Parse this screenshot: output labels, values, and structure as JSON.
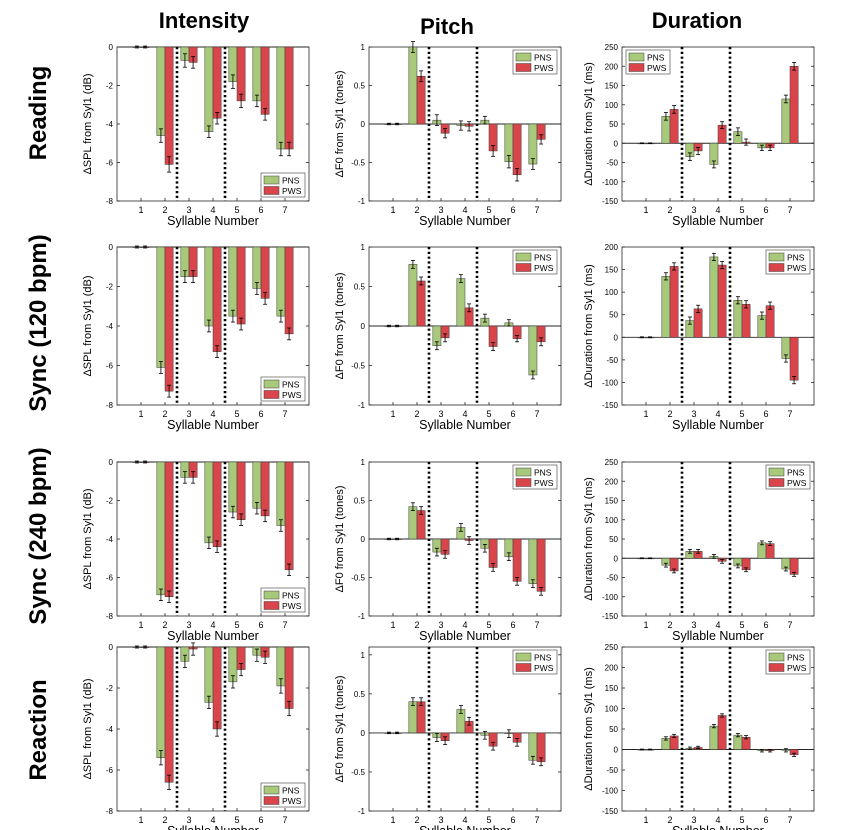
{
  "column_titles": [
    "Intensity",
    "Pitch",
    "Duration"
  ],
  "row_titles": [
    "Reading",
    "Sync (120 bpm)",
    "Sync (240 bpm)",
    "Reaction"
  ],
  "xlabel": "Syllable Number",
  "ylabels": [
    "ΔSPL from Syl1 (dB)",
    "ΔF0 from Syl1 (tones)",
    "ΔDuration from Syl1 (ms)"
  ],
  "legend": [
    "PNS",
    "PWS"
  ],
  "colors": {
    "PNS": "#a9c97a",
    "PWS": "#d9454b",
    "text": "#000000",
    "axis": "#262626"
  },
  "chart_data": [
    {
      "type": "bar",
      "row": "Reading",
      "column": "Intensity",
      "categories": [
        "1",
        "2",
        "3",
        "4",
        "5",
        "6",
        "7"
      ],
      "ylim": [
        -8,
        0
      ],
      "yticks": [
        0,
        -2,
        -4,
        -6,
        -8
      ],
      "separators_after": [
        2,
        4
      ],
      "legend_position": "bottom-right",
      "series": [
        {
          "name": "PNS",
          "values": [
            0,
            -4.6,
            -0.7,
            -4.4,
            -1.8,
            -2.8,
            -5.3
          ],
          "errors": [
            0.05,
            0.35,
            0.35,
            0.3,
            0.35,
            0.3,
            0.35
          ]
        },
        {
          "name": "PWS",
          "values": [
            0,
            -6.1,
            -0.8,
            -3.7,
            -2.8,
            -3.5,
            -5.3
          ],
          "errors": [
            0.05,
            0.4,
            0.3,
            0.3,
            0.35,
            0.3,
            0.35
          ]
        }
      ]
    },
    {
      "type": "bar",
      "row": "Reading",
      "column": "Pitch",
      "categories": [
        "1",
        "2",
        "3",
        "4",
        "5",
        "6",
        "7"
      ],
      "ylim": [
        -1,
        1
      ],
      "yticks": [
        1,
        0.5,
        0,
        -0.5,
        -1
      ],
      "separators_after": [
        2,
        4
      ],
      "legend_position": "top-right",
      "series": [
        {
          "name": "PNS",
          "values": [
            0,
            1.0,
            0.05,
            -0.02,
            0.05,
            -0.49,
            -0.52
          ],
          "errors": [
            0.01,
            0.07,
            0.07,
            0.06,
            0.05,
            0.08,
            0.07
          ]
        },
        {
          "name": "PWS",
          "values": [
            0,
            0.62,
            -0.12,
            -0.03,
            -0.35,
            -0.66,
            -0.2
          ],
          "errors": [
            0.01,
            0.07,
            0.06,
            0.06,
            0.07,
            0.08,
            0.06
          ]
        }
      ]
    },
    {
      "type": "bar",
      "row": "Reading",
      "column": "Duration",
      "categories": [
        "1",
        "2",
        "3",
        "4",
        "5",
        "6",
        "7"
      ],
      "ylim": [
        -150,
        250
      ],
      "yticks": [
        250,
        200,
        150,
        100,
        50,
        0,
        -50,
        -100,
        -150
      ],
      "separators_after": [
        2,
        4
      ],
      "legend_position": "top-left",
      "series": [
        {
          "name": "PNS",
          "values": [
            0,
            70,
            -35,
            -55,
            30,
            -12,
            115
          ],
          "errors": [
            1,
            10,
            10,
            9,
            10,
            7,
            10
          ]
        },
        {
          "name": "PWS",
          "values": [
            0,
            88,
            -20,
            47,
            3,
            -12,
            200
          ],
          "errors": [
            1,
            10,
            9,
            9,
            8,
            7,
            10
          ]
        }
      ]
    },
    {
      "type": "bar",
      "row": "Sync (120 bpm)",
      "column": "Intensity",
      "categories": [
        "1",
        "2",
        "3",
        "4",
        "5",
        "6",
        "7"
      ],
      "ylim": [
        -8,
        0
      ],
      "yticks": [
        0,
        -2,
        -4,
        -6,
        -8
      ],
      "separators_after": [
        2,
        4
      ],
      "legend_position": "bottom-right",
      "series": [
        {
          "name": "PNS",
          "values": [
            0,
            -6.1,
            -1.5,
            -4.0,
            -3.5,
            -2.1,
            -3.5
          ],
          "errors": [
            0.05,
            0.3,
            0.3,
            0.3,
            0.3,
            0.3,
            0.3
          ]
        },
        {
          "name": "PWS",
          "values": [
            0,
            -7.3,
            -1.5,
            -5.3,
            -3.9,
            -2.6,
            -4.4
          ],
          "errors": [
            0.05,
            0.3,
            0.3,
            0.3,
            0.3,
            0.3,
            0.3
          ]
        }
      ]
    },
    {
      "type": "bar",
      "row": "Sync (120 bpm)",
      "column": "Pitch",
      "categories": [
        "1",
        "2",
        "3",
        "4",
        "5",
        "6",
        "7"
      ],
      "ylim": [
        -1,
        1
      ],
      "yticks": [
        1,
        0.5,
        0,
        -0.5,
        -1
      ],
      "separators_after": [
        2,
        4
      ],
      "legend_position": "top-right",
      "series": [
        {
          "name": "PNS",
          "values": [
            0,
            0.78,
            -0.25,
            0.6,
            0.1,
            0.04,
            -0.62
          ],
          "errors": [
            0.01,
            0.05,
            0.05,
            0.05,
            0.05,
            0.04,
            0.05
          ]
        },
        {
          "name": "PWS",
          "values": [
            0,
            0.57,
            -0.15,
            0.23,
            -0.26,
            -0.16,
            -0.2
          ],
          "errors": [
            0.01,
            0.05,
            0.05,
            0.05,
            0.05,
            0.04,
            0.05
          ]
        }
      ]
    },
    {
      "type": "bar",
      "row": "Sync (120 bpm)",
      "column": "Duration",
      "categories": [
        "1",
        "2",
        "3",
        "4",
        "5",
        "6",
        "7"
      ],
      "ylim": [
        -150,
        200
      ],
      "yticks": [
        200,
        150,
        100,
        50,
        0,
        -50,
        -100,
        -150
      ],
      "separators_after": [
        2,
        4
      ],
      "legend_position": "top-right",
      "series": [
        {
          "name": "PNS",
          "values": [
            0,
            135,
            37,
            178,
            82,
            48,
            -47
          ],
          "errors": [
            1,
            8,
            8,
            8,
            8,
            8,
            8
          ]
        },
        {
          "name": "PWS",
          "values": [
            0,
            157,
            63,
            160,
            73,
            70,
            -95
          ],
          "errors": [
            1,
            8,
            8,
            8,
            8,
            8,
            8
          ]
        }
      ]
    },
    {
      "type": "bar",
      "row": "Sync (240 bpm)",
      "column": "Intensity",
      "categories": [
        "1",
        "2",
        "3",
        "4",
        "5",
        "6",
        "7"
      ],
      "ylim": [
        -8,
        0
      ],
      "yticks": [
        0,
        -2,
        -4,
        -6,
        -8
      ],
      "separators_after": [
        2,
        4
      ],
      "legend_position": "bottom-right",
      "series": [
        {
          "name": "PNS",
          "values": [
            0,
            -6.9,
            -0.8,
            -4.2,
            -2.6,
            -2.4,
            -3.3
          ],
          "errors": [
            0.05,
            0.3,
            0.3,
            0.3,
            0.3,
            0.3,
            0.3
          ]
        },
        {
          "name": "PWS",
          "values": [
            0,
            -7.0,
            -0.8,
            -4.4,
            -3.0,
            -2.8,
            -5.6
          ],
          "errors": [
            0.05,
            0.3,
            0.3,
            0.3,
            0.3,
            0.3,
            0.3
          ]
        }
      ]
    },
    {
      "type": "bar",
      "row": "Sync (240 bpm)",
      "column": "Pitch",
      "categories": [
        "1",
        "2",
        "3",
        "4",
        "5",
        "6",
        "7"
      ],
      "ylim": [
        -1,
        1
      ],
      "yticks": [
        1,
        0.5,
        0,
        -0.5,
        -1
      ],
      "separators_after": [
        2,
        4
      ],
      "legend_position": "top-right",
      "series": [
        {
          "name": "PNS",
          "values": [
            0,
            0.42,
            -0.17,
            0.15,
            -0.12,
            -0.23,
            -0.58
          ],
          "errors": [
            0.01,
            0.05,
            0.05,
            0.05,
            0.05,
            0.05,
            0.05
          ]
        },
        {
          "name": "PWS",
          "values": [
            0,
            0.37,
            -0.2,
            -0.02,
            -0.37,
            -0.55,
            -0.68
          ],
          "errors": [
            0.01,
            0.05,
            0.05,
            0.05,
            0.05,
            0.05,
            0.05
          ]
        }
      ]
    },
    {
      "type": "bar",
      "row": "Sync (240 bpm)",
      "column": "Duration",
      "categories": [
        "1",
        "2",
        "3",
        "4",
        "5",
        "6",
        "7"
      ],
      "ylim": [
        -150,
        250
      ],
      "yticks": [
        250,
        200,
        150,
        100,
        50,
        0,
        -50,
        -100,
        -150
      ],
      "separators_after": [
        2,
        4
      ],
      "legend_position": "top-right",
      "series": [
        {
          "name": "PNS",
          "values": [
            0,
            -18,
            18,
            5,
            -20,
            40,
            -28
          ],
          "errors": [
            1,
            5,
            5,
            5,
            5,
            5,
            5
          ]
        },
        {
          "name": "PWS",
          "values": [
            0,
            -33,
            18,
            -8,
            -30,
            38,
            -42
          ],
          "errors": [
            1,
            5,
            5,
            5,
            5,
            5,
            5
          ]
        }
      ]
    },
    {
      "type": "bar",
      "row": "Reaction",
      "column": "Intensity",
      "categories": [
        "1",
        "2",
        "3",
        "4",
        "5",
        "6",
        "7"
      ],
      "ylim": [
        -8,
        0
      ],
      "yticks": [
        0,
        -2,
        -4,
        -6,
        -8
      ],
      "separators_after": [
        2,
        4
      ],
      "legend_position": "bottom-right",
      "series": [
        {
          "name": "PNS",
          "values": [
            0,
            -5.4,
            -0.7,
            -2.7,
            -1.7,
            -0.4,
            -1.9
          ],
          "errors": [
            0.05,
            0.35,
            0.3,
            0.3,
            0.3,
            0.3,
            0.35
          ]
        },
        {
          "name": "PWS",
          "values": [
            0,
            -6.6,
            -0.1,
            -4.0,
            -1.1,
            -0.5,
            -3.0
          ],
          "errors": [
            0.05,
            0.35,
            0.3,
            0.35,
            0.3,
            0.3,
            0.35
          ]
        }
      ]
    },
    {
      "type": "bar",
      "row": "Reaction",
      "column": "Pitch",
      "categories": [
        "1",
        "2",
        "3",
        "4",
        "5",
        "6",
        "7"
      ],
      "ylim": [
        -1,
        1.1
      ],
      "yticks": [
        1,
        0.5,
        0,
        -0.5,
        -1
      ],
      "separators_after": [
        2,
        4
      ],
      "legend_position": "top-right",
      "series": [
        {
          "name": "PNS",
          "values": [
            0,
            0.4,
            -0.06,
            0.3,
            -0.03,
            -0.01,
            -0.35
          ],
          "errors": [
            0.01,
            0.05,
            0.05,
            0.05,
            0.05,
            0.05,
            0.05
          ]
        },
        {
          "name": "PWS",
          "values": [
            0,
            0.4,
            -0.1,
            0.15,
            -0.17,
            -0.12,
            -0.37
          ],
          "errors": [
            0.01,
            0.05,
            0.05,
            0.05,
            0.05,
            0.05,
            0.05
          ]
        }
      ]
    },
    {
      "type": "bar",
      "row": "Reaction",
      "column": "Duration",
      "categories": [
        "1",
        "2",
        "3",
        "4",
        "5",
        "6",
        "7"
      ],
      "ylim": [
        -150,
        250
      ],
      "yticks": [
        250,
        200,
        150,
        100,
        50,
        0,
        -50,
        -100,
        -150
      ],
      "separators_after": [
        2,
        4
      ],
      "legend_position": "top-right",
      "series": [
        {
          "name": "PNS",
          "values": [
            0,
            27,
            3,
            57,
            35,
            -3,
            -2
          ],
          "errors": [
            1,
            4,
            3,
            4,
            4,
            3,
            4
          ]
        },
        {
          "name": "PWS",
          "values": [
            0,
            33,
            5,
            83,
            30,
            -3,
            -13
          ],
          "errors": [
            1,
            4,
            3,
            4,
            4,
            3,
            4
          ]
        }
      ]
    }
  ]
}
